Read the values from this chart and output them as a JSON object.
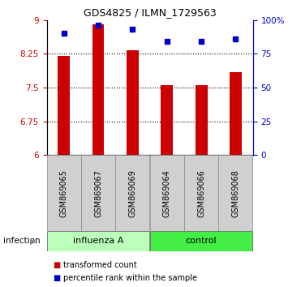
{
  "title": "GDS4825 / ILMN_1729563",
  "samples": [
    "GSM869065",
    "GSM869067",
    "GSM869069",
    "GSM869064",
    "GSM869066",
    "GSM869068"
  ],
  "bar_values": [
    8.2,
    8.9,
    8.32,
    7.55,
    7.55,
    7.85
  ],
  "percentile_values": [
    90,
    96,
    93,
    84,
    84,
    86
  ],
  "bar_color": "#cc0000",
  "dot_color": "#0000cc",
  "ymin": 6,
  "ymax": 9,
  "yticks_left": [
    6,
    6.75,
    7.5,
    8.25,
    9
  ],
  "yticks_right": [
    0,
    25,
    50,
    75,
    100
  ],
  "ytick_labels_left": [
    "6",
    "6.75",
    "7.5",
    "8.25",
    "9"
  ],
  "ytick_labels_right": [
    "0",
    "25",
    "50",
    "75",
    "100%"
  ],
  "groups": [
    {
      "label": "influenza A",
      "indices": [
        0,
        1,
        2
      ],
      "color": "#bbffbb"
    },
    {
      "label": "control",
      "indices": [
        3,
        4,
        5
      ],
      "color": "#44ee44"
    }
  ],
  "legend_items": [
    {
      "label": "transformed count",
      "color": "#cc0000"
    },
    {
      "label": "percentile rank within the sample",
      "color": "#0000cc"
    }
  ],
  "label_area_color": "#d0d0d0",
  "bar_width": 0.35
}
